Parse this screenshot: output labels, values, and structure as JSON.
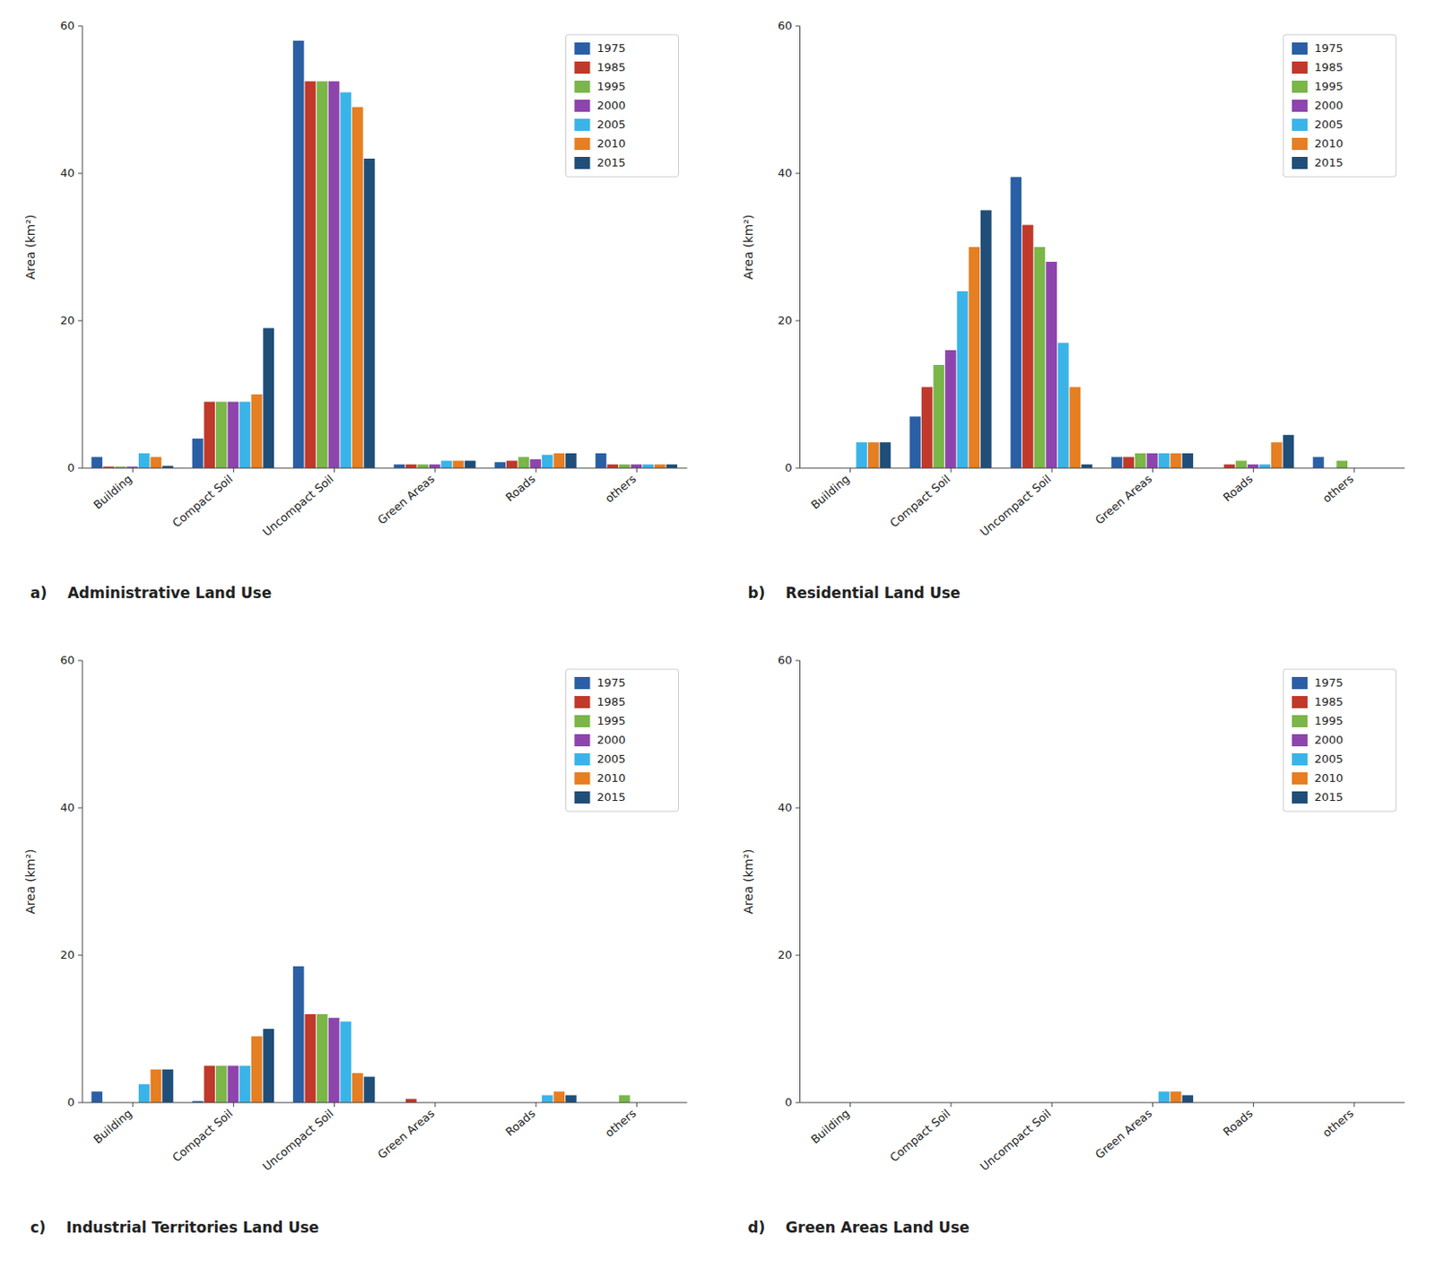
{
  "chart_data": [
    {
      "type": "bar",
      "title": "a)    Administrative Land Use",
      "ylabel": "Area (km²)",
      "categories": [
        "Building",
        "Compact Soil",
        "Uncompact Soil",
        "Green Areas",
        "Roads",
        "others"
      ],
      "series": [
        {
          "name": "1975",
          "color": "#2a5fa5",
          "values": [
            1.5,
            4.0,
            58.0,
            0.5,
            0.8,
            2.0
          ]
        },
        {
          "name": "1985",
          "color": "#c0392b",
          "values": [
            0.2,
            9.0,
            52.5,
            0.5,
            1.0,
            0.5
          ]
        },
        {
          "name": "1995",
          "color": "#7ab648",
          "values": [
            0.2,
            9.0,
            52.5,
            0.5,
            1.5,
            0.5
          ]
        },
        {
          "name": "2000",
          "color": "#8e44ad",
          "values": [
            0.2,
            9.0,
            52.5,
            0.5,
            1.2,
            0.5
          ]
        },
        {
          "name": "2005",
          "color": "#3ab4e8",
          "values": [
            2.0,
            9.0,
            51.0,
            1.0,
            1.8,
            0.5
          ]
        },
        {
          "name": "2010",
          "color": "#e67e22",
          "values": [
            1.5,
            10.0,
            49.0,
            1.0,
            2.0,
            0.5
          ]
        },
        {
          "name": "2015",
          "color": "#1f4e79",
          "values": [
            0.3,
            19.0,
            42.0,
            1.0,
            2.0,
            0.5
          ]
        }
      ],
      "ylim": [
        0,
        60
      ],
      "yticks": [
        0,
        20,
        40,
        60
      ],
      "grid": false,
      "legend": "upper right"
    },
    {
      "type": "bar",
      "title": "b)    Residential Land Use",
      "ylabel": "Area (km²)",
      "categories": [
        "Building",
        "Compact Soil",
        "Uncompact Soil",
        "Green Areas",
        "Roads",
        "others"
      ],
      "series": [
        {
          "name": "1975",
          "color": "#2a5fa5",
          "values": [
            0.0,
            7.0,
            39.5,
            1.5,
            0.0,
            1.5
          ]
        },
        {
          "name": "1985",
          "color": "#c0392b",
          "values": [
            0.0,
            11.0,
            33.0,
            1.5,
            0.5,
            0.0
          ]
        },
        {
          "name": "1995",
          "color": "#7ab648",
          "values": [
            0.0,
            14.0,
            30.0,
            2.0,
            1.0,
            1.0
          ]
        },
        {
          "name": "2000",
          "color": "#8e44ad",
          "values": [
            0.0,
            16.0,
            28.0,
            2.0,
            0.5,
            0.0
          ]
        },
        {
          "name": "2005",
          "color": "#3ab4e8",
          "values": [
            3.5,
            24.0,
            17.0,
            2.0,
            0.5,
            0.0
          ]
        },
        {
          "name": "2010",
          "color": "#e67e22",
          "values": [
            3.5,
            30.0,
            11.0,
            2.0,
            3.5,
            0.0
          ]
        },
        {
          "name": "2015",
          "color": "#1f4e79",
          "values": [
            3.5,
            35.0,
            0.5,
            2.0,
            4.5,
            0.0
          ]
        }
      ],
      "ylim": [
        0,
        60
      ],
      "yticks": [
        0,
        20,
        40,
        60
      ],
      "grid": false,
      "legend": "upper right"
    },
    {
      "type": "bar",
      "title": "c)    Industrial Territories Land Use",
      "ylabel": "Area (km²)",
      "categories": [
        "Building",
        "Compact Soil",
        "Uncompact Soil",
        "Green Areas",
        "Roads",
        "others"
      ],
      "series": [
        {
          "name": "1975",
          "color": "#2a5fa5",
          "values": [
            1.5,
            0.2,
            18.5,
            0.0,
            0.0,
            0.0
          ]
        },
        {
          "name": "1985",
          "color": "#c0392b",
          "values": [
            0.0,
            5.0,
            12.0,
            0.5,
            0.0,
            0.0
          ]
        },
        {
          "name": "1995",
          "color": "#7ab648",
          "values": [
            0.0,
            5.0,
            12.0,
            0.0,
            0.0,
            1.0
          ]
        },
        {
          "name": "2000",
          "color": "#8e44ad",
          "values": [
            0.0,
            5.0,
            11.5,
            0.0,
            0.0,
            0.0
          ]
        },
        {
          "name": "2005",
          "color": "#3ab4e8",
          "values": [
            2.5,
            5.0,
            11.0,
            0.0,
            1.0,
            0.0
          ]
        },
        {
          "name": "2010",
          "color": "#e67e22",
          "values": [
            4.5,
            9.0,
            4.0,
            0.0,
            1.5,
            0.0
          ]
        },
        {
          "name": "2015",
          "color": "#1f4e79",
          "values": [
            4.5,
            10.0,
            3.5,
            0.0,
            1.0,
            0.0
          ]
        }
      ],
      "ylim": [
        0,
        60
      ],
      "yticks": [
        0,
        20,
        40,
        60
      ],
      "grid": false,
      "legend": "upper right"
    },
    {
      "type": "bar",
      "title": "d)    Green Areas Land Use",
      "ylabel": "Area (km²)",
      "categories": [
        "Building",
        "Compact Soil",
        "Uncompact Soil",
        "Green Areas",
        "Roads",
        "others"
      ],
      "series": [
        {
          "name": "1975",
          "color": "#2a5fa5",
          "values": [
            0.0,
            0.0,
            0.0,
            0.0,
            0.0,
            0.0
          ]
        },
        {
          "name": "1985",
          "color": "#c0392b",
          "values": [
            0.0,
            0.0,
            0.0,
            0.0,
            0.0,
            0.0
          ]
        },
        {
          "name": "1995",
          "color": "#7ab648",
          "values": [
            0.0,
            0.0,
            0.0,
            0.0,
            0.0,
            0.0
          ]
        },
        {
          "name": "2000",
          "color": "#8e44ad",
          "values": [
            0.0,
            0.0,
            0.0,
            0.0,
            0.0,
            0.0
          ]
        },
        {
          "name": "2005",
          "color": "#3ab4e8",
          "values": [
            0.0,
            0.0,
            0.0,
            1.5,
            0.0,
            0.0
          ]
        },
        {
          "name": "2010",
          "color": "#e67e22",
          "values": [
            0.0,
            0.0,
            0.0,
            1.5,
            0.0,
            0.0
          ]
        },
        {
          "name": "2015",
          "color": "#1f4e79",
          "values": [
            0.0,
            0.0,
            0.0,
            1.0,
            0.0,
            0.0
          ]
        }
      ],
      "ylim": [
        0,
        60
      ],
      "yticks": [
        0,
        20,
        40,
        60
      ],
      "grid": false,
      "legend": "upper right"
    }
  ]
}
